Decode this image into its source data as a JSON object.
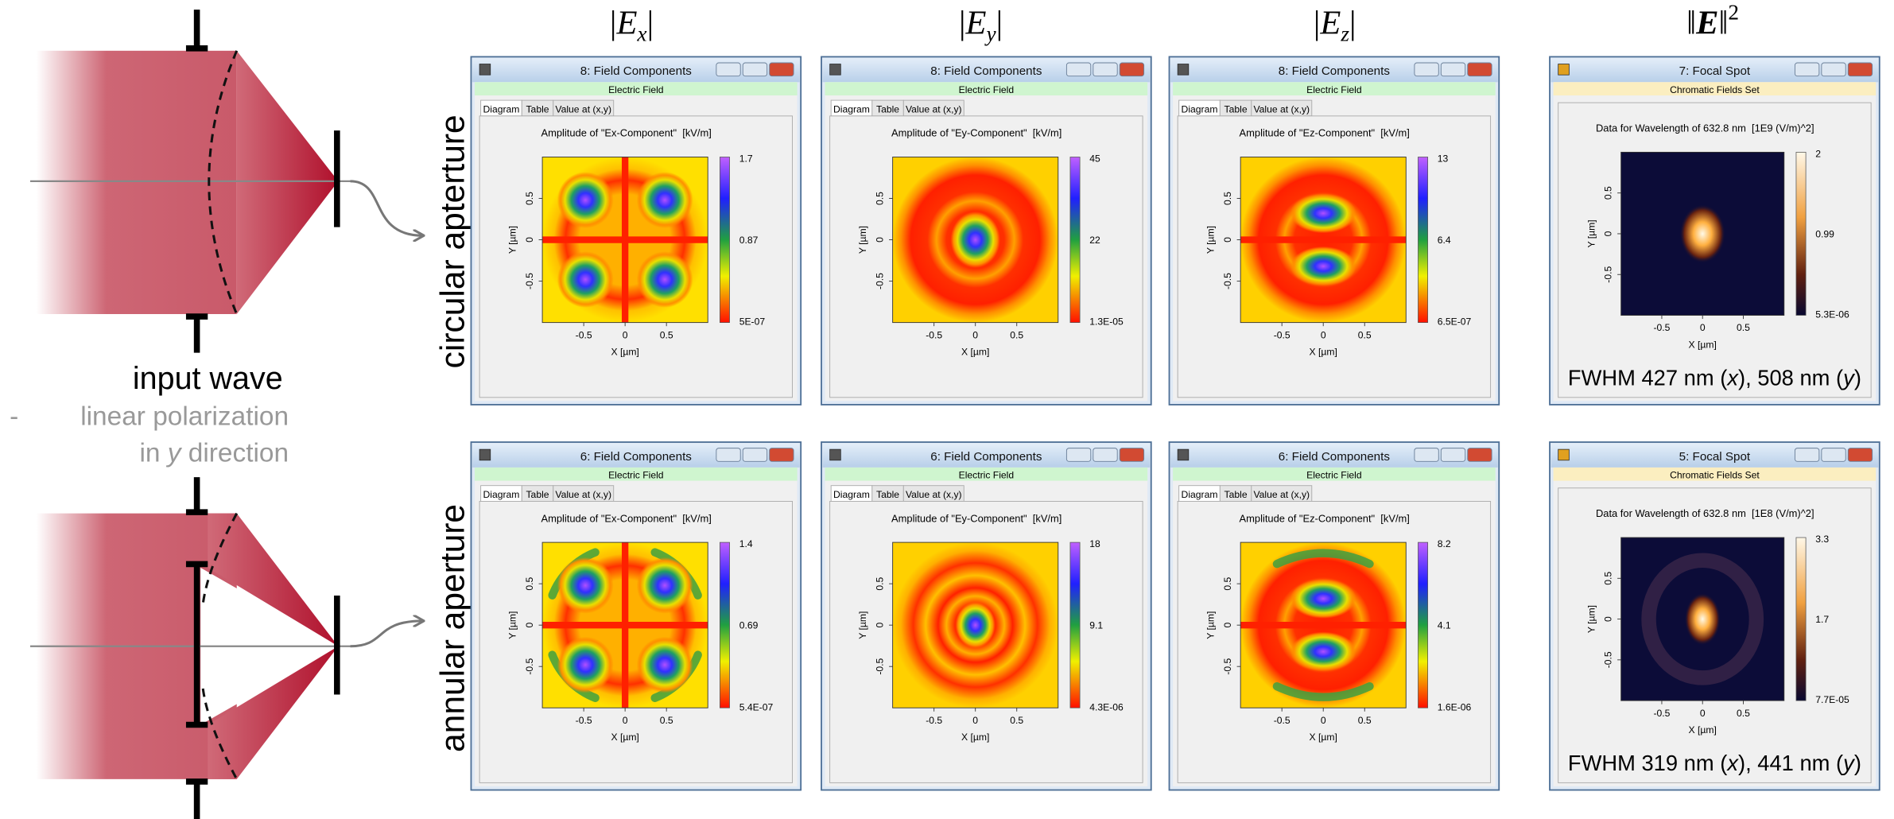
{
  "column_headers": [
    {
      "pre": "|",
      "base": "E",
      "sub": "x",
      "post": "|"
    },
    {
      "pre": "|",
      "base": "E",
      "sub": "y",
      "post": "|"
    },
    {
      "pre": "|",
      "base": "E",
      "sub": "z",
      "post": "|"
    },
    {
      "pre": "‖",
      "base": "E",
      "post": "‖",
      "sup": "2"
    }
  ],
  "row_labels": [
    "circular apterture",
    "annular aperture"
  ],
  "input": {
    "title": "input wave",
    "bullet": "-",
    "line1": "linear polarization",
    "line2_pre": "in ",
    "line2_var": "y",
    "line2_post": " direction"
  },
  "windows": [
    {
      "title": "8: Field Components",
      "band": "Electric Field",
      "tabs": [
        "Diagram",
        "Table",
        "Value at (x,y)"
      ],
      "plot_title": "Amplitude of \"Ex-Component\"  [kV/m]",
      "colorbar": [
        "1.7",
        "0.87",
        "5E-07"
      ],
      "x_label": "X [µm]",
      "y_label": "Y [µm]",
      "x_ticks": [
        "-0.5",
        "0",
        "0.5"
      ],
      "y_ticks": [
        "0.5",
        "0",
        "-0.5"
      ]
    },
    {
      "title": "8: Field Components",
      "band": "Electric Field",
      "tabs": [
        "Diagram",
        "Table",
        "Value at (x,y)"
      ],
      "plot_title": "Amplitude of \"Ey-Component\"  [kV/m]",
      "colorbar": [
        "45",
        "22",
        "1.3E-05"
      ],
      "x_label": "X [µm]",
      "y_label": "Y [µm]",
      "x_ticks": [
        "-0.5",
        "0",
        "0.5"
      ],
      "y_ticks": [
        "0.5",
        "0",
        "-0.5"
      ]
    },
    {
      "title": "8: Field Components",
      "band": "Electric Field",
      "tabs": [
        "Diagram",
        "Table",
        "Value at (x,y)"
      ],
      "plot_title": "Amplitude of \"Ez-Component\"  [kV/m]",
      "colorbar": [
        "13",
        "6.4",
        "6.5E-07"
      ],
      "x_label": "X [µm]",
      "y_label": "Y [µm]",
      "x_ticks": [
        "-0.5",
        "0",
        "0.5"
      ],
      "y_ticks": [
        "0.5",
        "0",
        "-0.5"
      ]
    },
    {
      "title": "7: Focal Spot",
      "band": "Chromatic Fields Set",
      "plot_title": "Data for Wavelength of 632.8 nm  [1E9 (V/m)^2]",
      "colorbar": [
        "2",
        "0.99",
        "5.3E-06"
      ],
      "x_label": "X [µm]",
      "y_label": "Y [µm]",
      "x_ticks": [
        "-0.5",
        "0",
        "0.5"
      ],
      "y_ticks": [
        "0.5",
        "0",
        "-0.5"
      ],
      "caption": [
        "FWHM 427 nm (",
        "x",
        "), 508 nm (",
        "y",
        ")"
      ]
    },
    {
      "title": "6: Field Components",
      "band": "Electric Field",
      "tabs": [
        "Diagram",
        "Table",
        "Value at (x,y)"
      ],
      "plot_title": "Amplitude of \"Ex-Component\"  [kV/m]",
      "colorbar": [
        "1.4",
        "0.69",
        "5.4E-07"
      ],
      "x_label": "X [µm]",
      "y_label": "Y [µm]",
      "x_ticks": [
        "-0.5",
        "0",
        "0.5"
      ],
      "y_ticks": [
        "0.5",
        "0",
        "-0.5"
      ]
    },
    {
      "title": "6: Field Components",
      "band": "Electric Field",
      "tabs": [
        "Diagram",
        "Table",
        "Value at (x,y)"
      ],
      "plot_title": "Amplitude of \"Ey-Component\"  [kV/m]",
      "colorbar": [
        "18",
        "9.1",
        "4.3E-06"
      ],
      "x_label": "X [µm]",
      "y_label": "Y [µm]",
      "x_ticks": [
        "-0.5",
        "0",
        "0.5"
      ],
      "y_ticks": [
        "0.5",
        "0",
        "-0.5"
      ]
    },
    {
      "title": "6: Field Components",
      "band": "Electric Field",
      "tabs": [
        "Diagram",
        "Table",
        "Value at (x,y)"
      ],
      "plot_title": "Amplitude of \"Ez-Component\"  [kV/m]",
      "colorbar": [
        "8.2",
        "4.1",
        "1.6E-06"
      ],
      "x_label": "X [µm]",
      "y_label": "Y [µm]",
      "x_ticks": [
        "-0.5",
        "0",
        "0.5"
      ],
      "y_ticks": [
        "0.5",
        "0",
        "-0.5"
      ]
    },
    {
      "title": "5: Focal Spot",
      "band": "Chromatic Fields Set",
      "plot_title": "Data for Wavelength of 632.8 nm  [1E8 (V/m)^2]",
      "colorbar": [
        "3.3",
        "1.7",
        "7.7E-05"
      ],
      "x_label": "X [µm]",
      "y_label": "Y [µm]",
      "x_ticks": [
        "-0.5",
        "0",
        "0.5"
      ],
      "y_ticks": [
        "0.5",
        "0",
        "-0.5"
      ],
      "caption": [
        "FWHM 319 nm (",
        "x",
        "), 441 nm (",
        "y",
        ")"
      ]
    }
  ]
}
